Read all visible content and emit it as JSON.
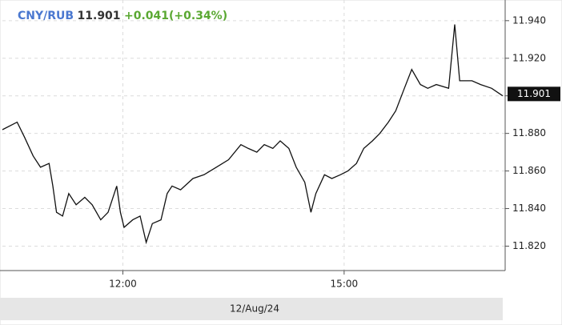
{
  "chart_data": {
    "type": "line",
    "symbol": "CNY/RUB",
    "price": 11.901,
    "change": "+0.041(+0.34%)",
    "date": "12/Aug/24",
    "x": [
      "10:22",
      "10:34",
      "10:40",
      "10:47",
      "10:53",
      "11:00",
      "11:03",
      "11:06",
      "11:11",
      "11:16",
      "11:22",
      "11:29",
      "11:35",
      "11:42",
      "11:48",
      "11:55",
      "11:58",
      "12:01",
      "12:08",
      "12:14",
      "12:19",
      "12:24",
      "12:31",
      "12:36",
      "12:40",
      "12:47",
      "12:57",
      "13:06",
      "13:16",
      "13:26",
      "13:36",
      "13:42",
      "13:49",
      "13:55",
      "14:02",
      "14:08",
      "14:15",
      "14:21",
      "14:28",
      "14:33",
      "14:37",
      "14:44",
      "14:50",
      "14:57",
      "15:03",
      "15:10",
      "15:16",
      "15:23",
      "15:29",
      "15:36",
      "15:42",
      "15:49",
      "15:55",
      "16:02",
      "16:08",
      "16:15",
      "16:25",
      "16:30",
      "16:34",
      "16:44",
      "16:51",
      "17:00",
      "17:09"
    ],
    "series": [
      {
        "name": "CNY/RUB",
        "color": "#111111",
        "values": [
          11.882,
          11.886,
          11.878,
          11.868,
          11.862,
          11.864,
          11.852,
          11.838,
          11.836,
          11.848,
          11.842,
          11.846,
          11.842,
          11.834,
          11.838,
          11.852,
          11.838,
          11.83,
          11.834,
          11.836,
          11.822,
          11.832,
          11.834,
          11.848,
          11.852,
          11.85,
          11.856,
          11.858,
          11.862,
          11.866,
          11.874,
          11.872,
          11.87,
          11.874,
          11.872,
          11.876,
          11.872,
          11.862,
          11.854,
          11.838,
          11.848,
          11.858,
          11.856,
          11.858,
          11.86,
          11.864,
          11.872,
          11.876,
          11.88,
          11.886,
          11.892,
          11.904,
          11.914,
          11.906,
          11.904,
          11.906,
          11.904,
          11.938,
          11.908,
          11.908,
          11.906,
          11.904,
          11.9
        ]
      }
    ],
    "xlim": [
      "10:22",
      "17:11"
    ],
    "xticks": [
      "12:00",
      "15:00"
    ],
    "ylim": [
      11.807,
      11.951
    ],
    "yticks": [
      {
        "value": 11.82,
        "label": "11.820"
      },
      {
        "value": 11.84,
        "label": "11.840"
      },
      {
        "value": 11.86,
        "label": "11.860"
      },
      {
        "value": 11.88,
        "label": "11.880"
      },
      {
        "value": 11.9,
        "label": "11.900"
      },
      {
        "value": 11.92,
        "label": "11.920"
      },
      {
        "value": 11.94,
        "label": "11.940"
      }
    ],
    "grid": true
  }
}
